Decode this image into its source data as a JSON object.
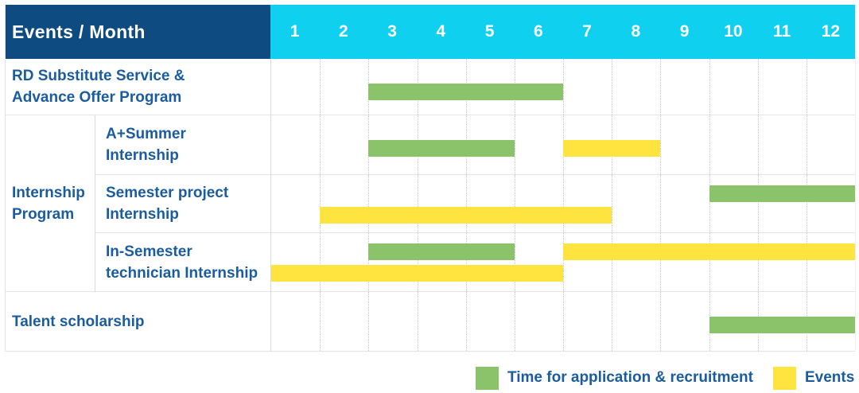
{
  "header": {
    "title": "Events / Month",
    "months": [
      "1",
      "2",
      "3",
      "4",
      "5",
      "6",
      "7",
      "8",
      "9",
      "10",
      "11",
      "12"
    ]
  },
  "legend": {
    "items": [
      {
        "label": "Time for application & recruitment",
        "type": "recruitment",
        "color": "#8bc36a"
      },
      {
        "label": "Events",
        "type": "event",
        "color": "#ffe440"
      }
    ]
  },
  "colors": {
    "recruitment_bar": "#8bc36a",
    "event_bar": "#ffe440",
    "header_bg": "#0d4b81",
    "months_bg": "#0fd1ef",
    "label_text": "#1a5c9e"
  },
  "chart_data": {
    "type": "table",
    "subtype": "gantt",
    "title": "Events / Month",
    "x_categories": [
      "1",
      "2",
      "3",
      "4",
      "5",
      "6",
      "7",
      "8",
      "9",
      "10",
      "11",
      "12"
    ],
    "x_range": [
      1,
      12
    ],
    "grid": true,
    "legend_position": "bottom-right",
    "legend": [
      {
        "label": "Time for application & recruitment",
        "color": "#8bc36a"
      },
      {
        "label": "Events",
        "color": "#ffe440"
      }
    ],
    "group_label_lines": [
      "Internship",
      "Program"
    ],
    "rows": [
      {
        "group": null,
        "label": "RD Substitute Service & Advance Offer Program",
        "label_lines": [
          "RD Substitute Service &",
          "Advance Offer Program"
        ],
        "bars": [
          {
            "type": "recruitment",
            "start_month": 3,
            "end_month": 6,
            "lane": "mid"
          }
        ]
      },
      {
        "group": "Internship Program",
        "label": "A+Summer Internship",
        "label_lines": [
          "A+Summer",
          "Internship"
        ],
        "bars": [
          {
            "type": "recruitment",
            "start_month": 3,
            "end_month": 5,
            "lane": "mid"
          },
          {
            "type": "event",
            "start_month": 7,
            "end_month": 8,
            "lane": "mid"
          }
        ]
      },
      {
        "group": "Internship Program",
        "label": "Semester project Internship",
        "label_lines": [
          "Semester project",
          "Internship"
        ],
        "bars": [
          {
            "type": "recruitment",
            "start_month": 10,
            "end_month": 12,
            "lane": "top"
          },
          {
            "type": "event",
            "start_month": 2,
            "end_month": 7,
            "lane": "low"
          }
        ]
      },
      {
        "group": "Internship Program",
        "label": "In-Semester technician Internship",
        "label_lines": [
          "In-Semester",
          "technician Internship"
        ],
        "bars": [
          {
            "type": "recruitment",
            "start_month": 3,
            "end_month": 5,
            "lane": "top"
          },
          {
            "type": "event",
            "start_month": 7,
            "end_month": 12,
            "lane": "top"
          },
          {
            "type": "event",
            "start_month": 1,
            "end_month": 6,
            "lane": "low"
          }
        ]
      },
      {
        "group": null,
        "label": "Talent scholarship",
        "label_lines": [
          "Talent scholarship"
        ],
        "bars": [
          {
            "type": "recruitment",
            "start_month": 10,
            "end_month": 12,
            "lane": "mid"
          }
        ]
      }
    ]
  }
}
